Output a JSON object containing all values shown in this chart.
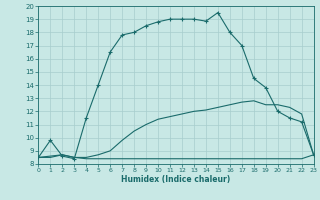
{
  "background_color": "#c8e8e5",
  "grid_color": "#a8cece",
  "line_color": "#1a6b6b",
  "xlabel": "Humidex (Indice chaleur)",
  "xlim": [
    0,
    23
  ],
  "ylim": [
    8,
    20
  ],
  "xticks": [
    0,
    1,
    2,
    3,
    4,
    5,
    6,
    7,
    8,
    9,
    10,
    11,
    12,
    13,
    14,
    15,
    16,
    17,
    18,
    19,
    20,
    21,
    22,
    23
  ],
  "yticks": [
    8,
    9,
    10,
    11,
    12,
    13,
    14,
    15,
    16,
    17,
    18,
    19,
    20
  ],
  "curve_top_x": [
    0,
    1,
    2,
    3,
    4,
    5,
    6,
    7,
    8,
    9,
    10,
    11,
    12,
    13,
    14,
    15,
    16,
    17,
    18,
    19,
    20,
    21,
    22,
    23
  ],
  "curve_top_y": [
    8.5,
    9.8,
    8.6,
    8.4,
    11.5,
    14.0,
    16.5,
    17.8,
    18.0,
    18.5,
    18.8,
    19.0,
    19.0,
    19.0,
    18.85,
    19.5,
    18.0,
    17.0,
    14.5,
    13.8,
    12.0,
    11.5,
    11.2,
    8.7
  ],
  "curve_mid_x": [
    0,
    1,
    2,
    3,
    4,
    5,
    6,
    7,
    8,
    9,
    10,
    11,
    12,
    13,
    14,
    15,
    16,
    17,
    18,
    19,
    20,
    21,
    22,
    23
  ],
  "curve_mid_y": [
    8.5,
    8.6,
    8.7,
    8.5,
    8.5,
    8.7,
    9.0,
    9.8,
    10.5,
    11.0,
    11.4,
    11.6,
    11.8,
    12.0,
    12.1,
    12.3,
    12.5,
    12.7,
    12.8,
    12.5,
    12.5,
    12.3,
    11.8,
    8.7
  ],
  "curve_bot_x": [
    0,
    1,
    2,
    3,
    4,
    5,
    6,
    7,
    8,
    9,
    10,
    11,
    12,
    13,
    14,
    15,
    16,
    17,
    18,
    19,
    20,
    21,
    22,
    23
  ],
  "curve_bot_y": [
    8.5,
    8.5,
    8.7,
    8.5,
    8.4,
    8.4,
    8.4,
    8.4,
    8.4,
    8.4,
    8.4,
    8.4,
    8.4,
    8.4,
    8.4,
    8.4,
    8.4,
    8.4,
    8.4,
    8.4,
    8.4,
    8.4,
    8.4,
    8.7
  ]
}
